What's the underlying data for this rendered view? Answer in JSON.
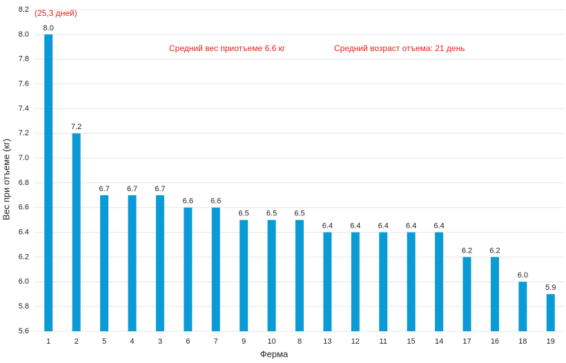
{
  "chart_data": {
    "type": "bar",
    "annotations": [
      "(25,3 дней)",
      "Средний вес приотъеме 6,6 кг",
      "Средний возраст отъема: 21 день"
    ],
    "x_label": "Ферма",
    "y_label": "Вес при отъеме (кг)",
    "categories": [
      "1",
      "2",
      "5",
      "4",
      "3",
      "6",
      "7",
      "9",
      "10",
      "8",
      "13",
      "12",
      "11",
      "15",
      "14",
      "17",
      "16",
      "18",
      "19"
    ],
    "values": [
      8.0,
      7.2,
      6.7,
      6.7,
      6.7,
      6.6,
      6.6,
      6.5,
      6.5,
      6.5,
      6.4,
      6.4,
      6.4,
      6.4,
      6.4,
      6.2,
      6.2,
      6.0,
      5.9
    ],
    "value_labels": [
      "8.0",
      "7.2",
      "6.7",
      "6.7",
      "6.7",
      "6.6",
      "6.6",
      "6.5",
      "6.5",
      "6.5",
      "6.4",
      "6.4",
      "6.4",
      "6.4",
      "6.4",
      "6.2",
      "6.2",
      "6.0",
      "5.9"
    ],
    "color": "#0a9ad6",
    "ylim": [
      5.6,
      8.2
    ],
    "yticks": [
      5.6,
      5.8,
      {
        "value": 6,
        "label": "6.0"
      },
      6.2,
      6.4,
      6.6,
      6.8,
      {
        "value": 7,
        "label": "7.0"
      },
      7.2,
      7.4,
      7.6,
      7.8,
      {
        "value": 8,
        "label": "8.0"
      },
      8.2
    ],
    "grid": true
  }
}
